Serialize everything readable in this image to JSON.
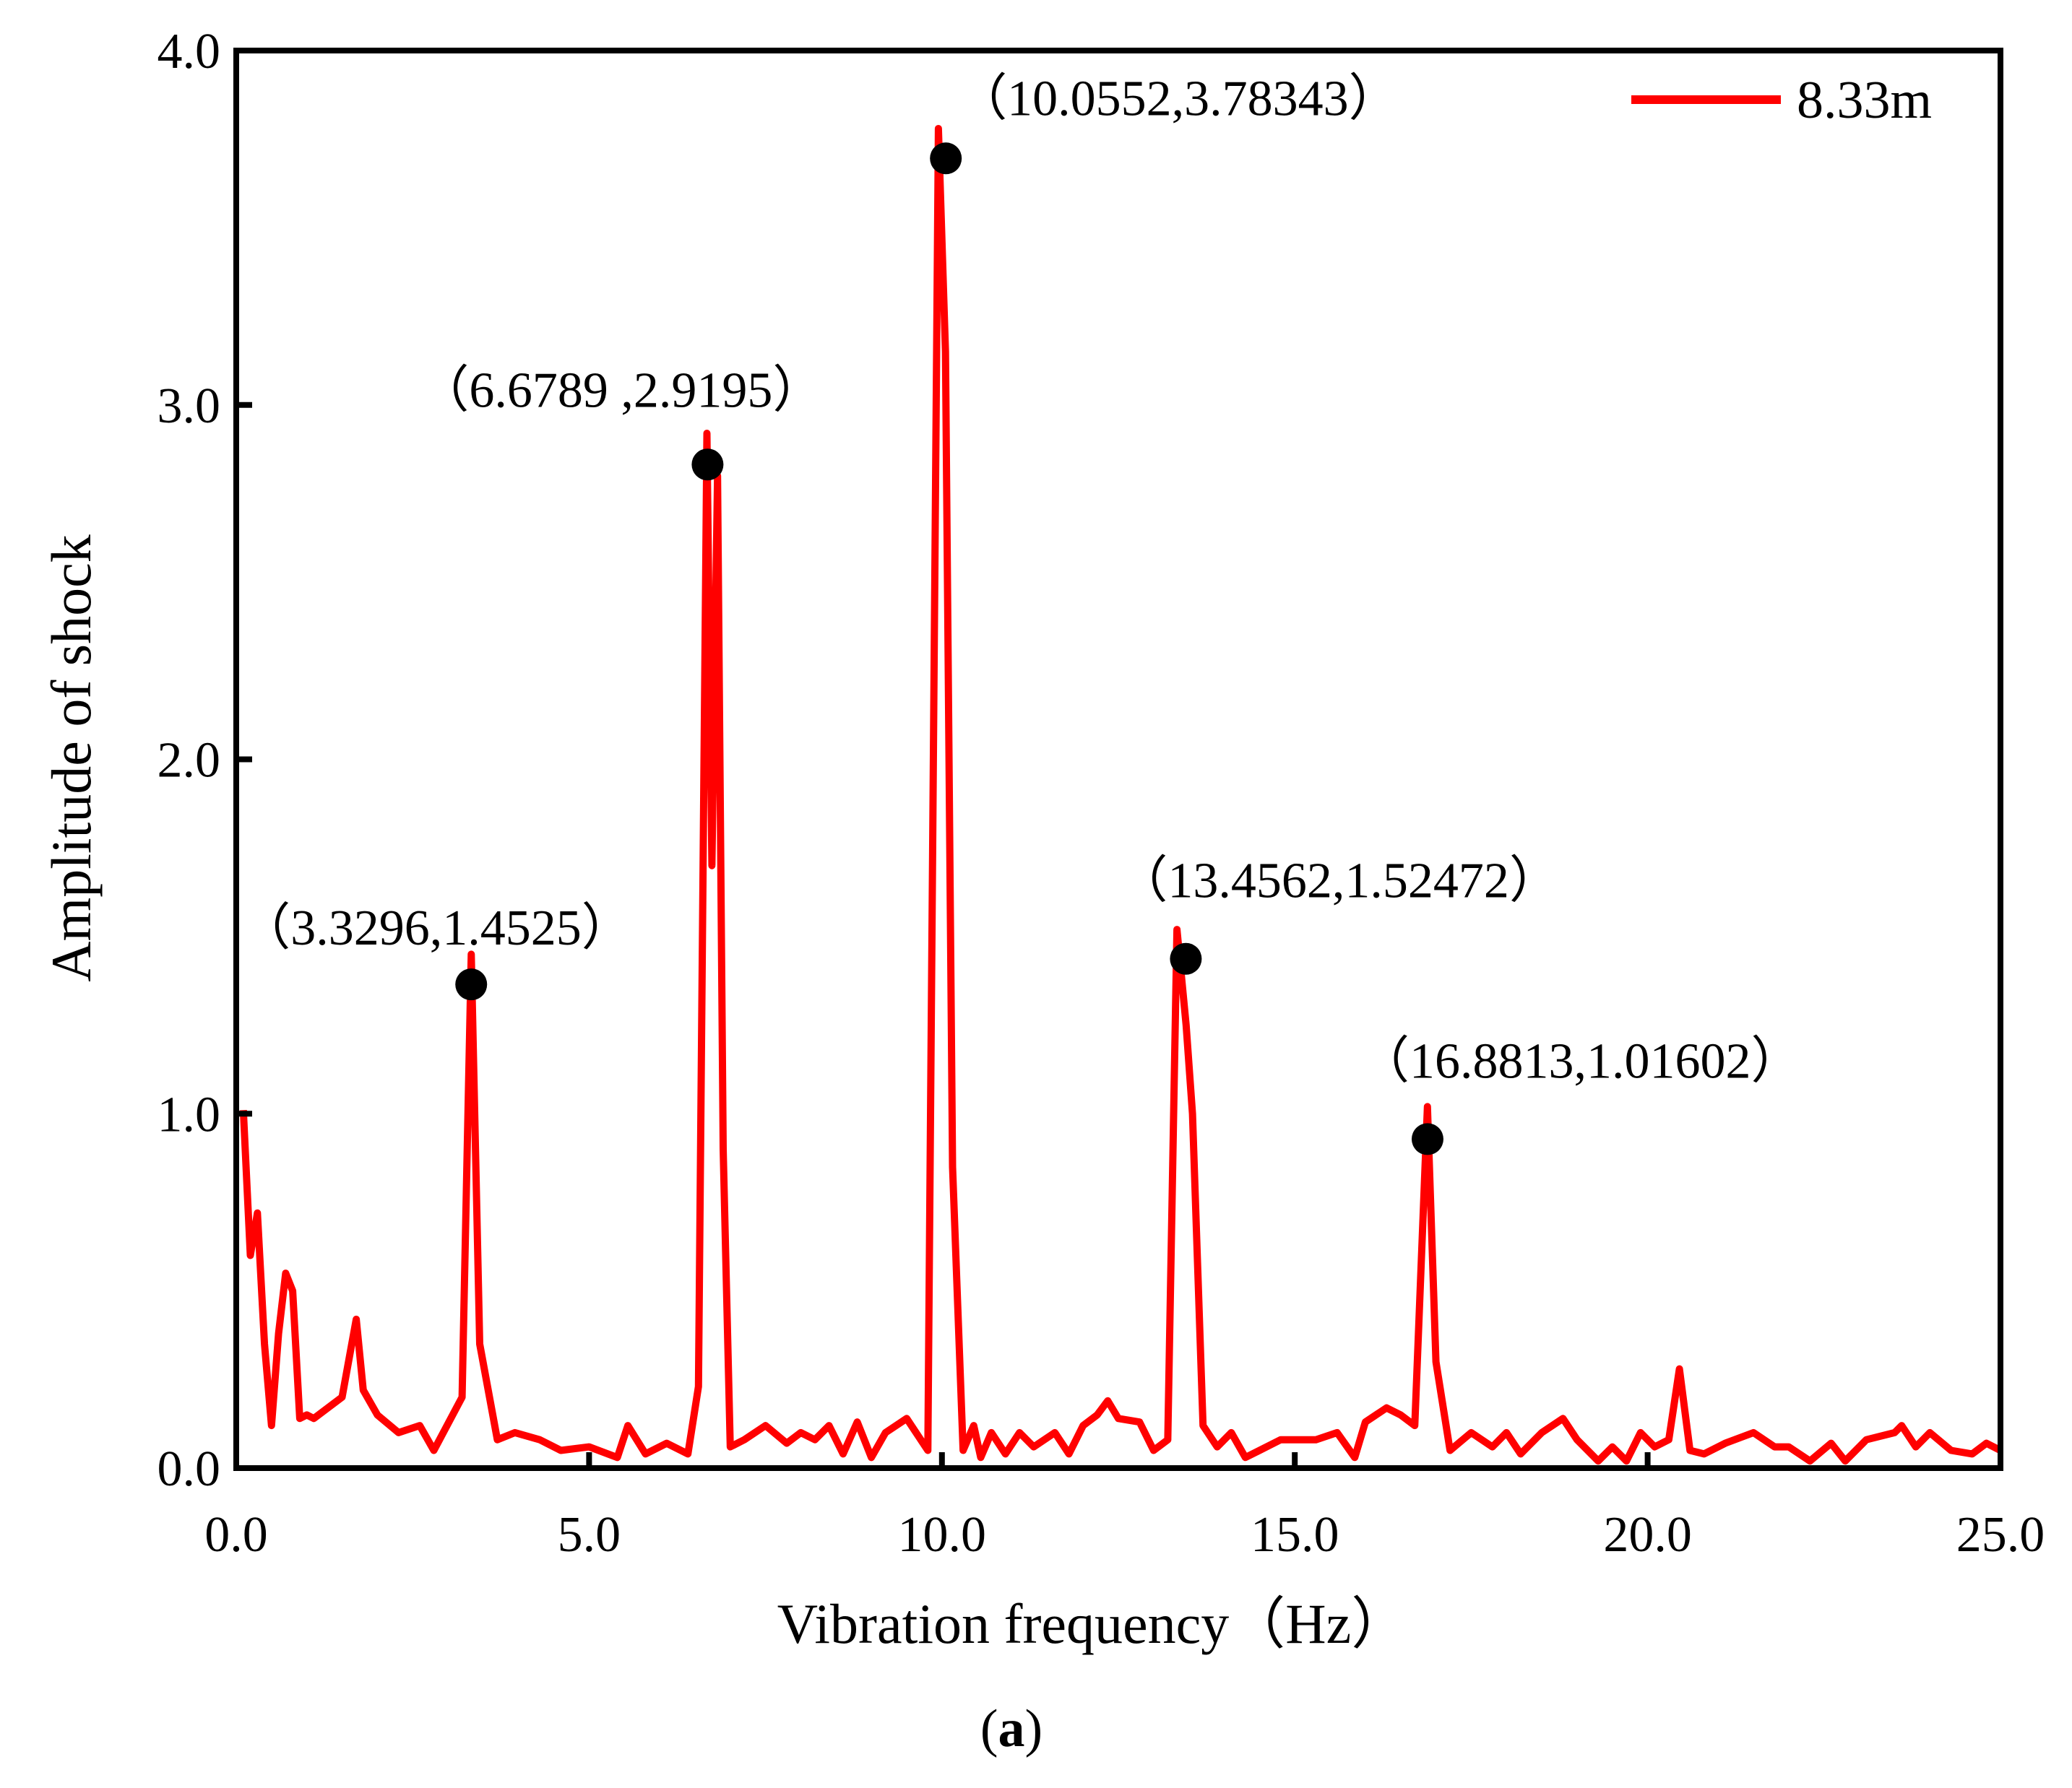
{
  "chart_data": {
    "type": "line",
    "xlabel": "Vibration frequency（Hz）",
    "ylabel": "Amplitude of shock",
    "xlim": [
      0,
      25
    ],
    "ylim": [
      0,
      4
    ],
    "xticks": [
      "0.0",
      "5.0",
      "10.0",
      "15.0",
      "20.0",
      "25.0"
    ],
    "xtick_values": [
      0,
      5,
      10,
      15,
      20,
      25
    ],
    "yticks": [
      "0.0",
      "1.0",
      "2.0",
      "3.0",
      "4.0"
    ],
    "ytick_values": [
      0,
      1,
      2,
      3,
      4
    ],
    "grid": false,
    "legend_position": "top-right",
    "panel_label": "a",
    "series": [
      {
        "name": "8.33m",
        "color": "#ff0000",
        "x": [
          0.1,
          0.2,
          0.3,
          0.4,
          0.5,
          0.6,
          0.7,
          0.8,
          0.9,
          1.0,
          1.1,
          1.5,
          1.7,
          1.8,
          2.0,
          2.3,
          2.6,
          2.8,
          3.2,
          3.33,
          3.45,
          3.7,
          3.95,
          4.3,
          4.6,
          5.0,
          5.4,
          5.55,
          5.8,
          6.1,
          6.4,
          6.55,
          6.67,
          6.74,
          6.82,
          6.9,
          7.0,
          7.2,
          7.5,
          7.8,
          8.0,
          8.2,
          8.4,
          8.6,
          8.8,
          9.0,
          9.2,
          9.5,
          9.8,
          9.95,
          10.05,
          10.15,
          10.3,
          10.45,
          10.55,
          10.7,
          10.9,
          11.1,
          11.3,
          11.6,
          11.8,
          12.0,
          12.2,
          12.35,
          12.5,
          12.8,
          13.0,
          13.2,
          13.33,
          13.46,
          13.55,
          13.7,
          13.9,
          14.1,
          14.3,
          14.5,
          14.8,
          15.0,
          15.3,
          15.6,
          15.85,
          16.0,
          16.3,
          16.5,
          16.7,
          16.88,
          17.0,
          17.2,
          17.5,
          17.8,
          18.0,
          18.2,
          18.5,
          18.8,
          19.0,
          19.3,
          19.5,
          19.7,
          19.9,
          20.1,
          20.3,
          20.45,
          20.6,
          20.8,
          21.1,
          21.5,
          21.8,
          22.0,
          22.3,
          22.6,
          22.8,
          23.1,
          23.5,
          23.6,
          23.8,
          24.0,
          24.3,
          24.6,
          24.8,
          25.0
        ],
        "values": [
          1.01,
          0.6,
          0.72,
          0.35,
          0.12,
          0.38,
          0.55,
          0.5,
          0.14,
          0.15,
          0.14,
          0.2,
          0.42,
          0.22,
          0.15,
          0.1,
          0.12,
          0.05,
          0.2,
          1.45,
          0.35,
          0.08,
          0.1,
          0.08,
          0.05,
          0.06,
          0.03,
          0.12,
          0.04,
          0.07,
          0.04,
          0.23,
          2.92,
          1.7,
          2.8,
          0.9,
          0.06,
          0.08,
          0.12,
          0.07,
          0.1,
          0.08,
          0.12,
          0.04,
          0.13,
          0.03,
          0.1,
          0.14,
          0.05,
          3.78,
          3.15,
          0.85,
          0.05,
          0.12,
          0.03,
          0.1,
          0.04,
          0.1,
          0.06,
          0.1,
          0.04,
          0.12,
          0.15,
          0.19,
          0.14,
          0.13,
          0.05,
          0.08,
          1.52,
          1.25,
          1.0,
          0.12,
          0.06,
          0.1,
          0.03,
          0.05,
          0.08,
          0.08,
          0.08,
          0.1,
          0.03,
          0.13,
          0.17,
          0.15,
          0.12,
          1.02,
          0.3,
          0.05,
          0.1,
          0.06,
          0.1,
          0.04,
          0.1,
          0.14,
          0.08,
          0.02,
          0.06,
          0.02,
          0.1,
          0.06,
          0.08,
          0.28,
          0.05,
          0.04,
          0.07,
          0.1,
          0.06,
          0.06,
          0.02,
          0.07,
          0.02,
          0.08,
          0.1,
          0.12,
          0.06,
          0.1,
          0.05,
          0.04,
          0.07,
          0.05
        ]
      }
    ],
    "annotations": [
      {
        "label": "（3.3296,1.4525）",
        "x": 3.3296,
        "y": 1.4525
      },
      {
        "label": "（6.6789  ,2.9195）",
        "x": 6.6789,
        "y": 2.9195
      },
      {
        "label": "（10.0552,3.78343）",
        "x": 10.0552,
        "y": 3.78343
      },
      {
        "label": "（13.4562,1.52472）",
        "x": 13.4562,
        "y": 1.52472
      },
      {
        "label": "（16.8813,1.01602）",
        "x": 16.8813,
        "y": 1.01602
      }
    ]
  }
}
